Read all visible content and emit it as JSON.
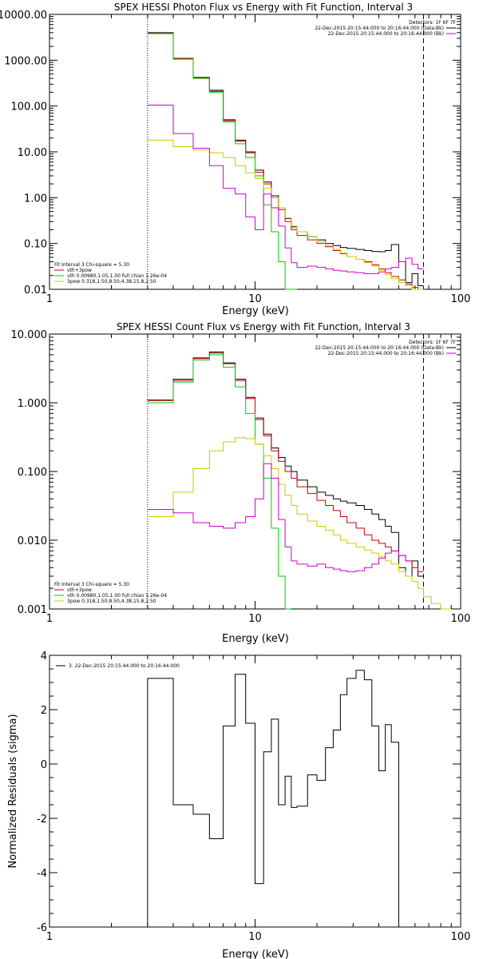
{
  "chart_data": [
    {
      "type": "line",
      "title": "SPEX HESSI Photon Flux vs Energy with Fit Function, Interval 3",
      "xlabel": "Energy (keV)",
      "ylabel": "",
      "xscale": "log",
      "yscale": "log",
      "xlim": [
        1,
        100
      ],
      "ylim": [
        0.01,
        10000
      ],
      "xticks": [
        {
          "v": 1,
          "label": "1"
        },
        {
          "v": 10,
          "label": "10"
        },
        {
          "v": 100,
          "label": "100"
        }
      ],
      "yticks": [
        {
          "v": 0.01,
          "label": "0.01"
        },
        {
          "v": 0.1,
          "label": "0.10"
        },
        {
          "v": 1,
          "label": "1.00"
        },
        {
          "v": 10,
          "label": "10.00"
        },
        {
          "v": 100,
          "label": "100.00"
        },
        {
          "v": 1000,
          "label": "1000.00"
        },
        {
          "v": 10000,
          "label": "10000.00"
        }
      ],
      "vlines": [
        {
          "x": 3.0,
          "style": "dotted"
        },
        {
          "x": 66.0,
          "style": "dashed"
        }
      ],
      "legend_top": [
        {
          "text": "Detectors: 1F 6F 7F",
          "color": ""
        },
        {
          "text": "22-Dec-2015 20:15:44.000 to 20:16:44.000 (Data-Bk)",
          "color": "#000000"
        },
        {
          "text": "22-Dec-2015 20:15:44.000 to 20:16:44.000 (Bk)",
          "color": "#cc00cc"
        }
      ],
      "legend_bottom": [
        {
          "text": "Fit Interval 3   Chi-square = 5.30",
          "color": ""
        },
        {
          "text": "vth+3pow",
          "color": "#cc0000"
        },
        {
          "text": "vth 0.00980,1.05,1.00  full chian 1.26e-04",
          "color": "#00cc00"
        },
        {
          "text": "3pow 0.318,1.50,8.50,4.38,15.8,2.50",
          "color": "#cccc00"
        }
      ],
      "bin_edges": [
        3,
        4,
        5,
        6,
        7,
        8,
        9,
        10,
        11,
        12,
        13,
        14,
        15,
        16,
        18,
        20,
        22,
        24,
        26,
        28,
        31,
        34,
        37,
        40,
        43,
        46,
        50,
        54,
        58,
        62,
        66
      ],
      "series": [
        {
          "name": "Data-Bk",
          "color": "#000000",
          "values": [
            4000,
            1100,
            420,
            220,
            50,
            18,
            10,
            4,
            2.2,
            1.1,
            0.6,
            0.35,
            0.23,
            0.18,
            0.14,
            0.12,
            0.1,
            0.09,
            0.082,
            0.078,
            0.074,
            0.07,
            0.067,
            0.066,
            0.07,
            0.095,
            0.04,
            0.014,
            0.022,
            0.012
          ]
        },
        {
          "name": "vth+3pow",
          "color": "#cc0000",
          "values": [
            3900,
            1080,
            410,
            210,
            48,
            17,
            9.5,
            3.6,
            2.0,
            1.0,
            0.55,
            0.3,
            0.2,
            0.15,
            0.12,
            0.1,
            0.085,
            0.07,
            0.06,
            0.052,
            0.045,
            0.04,
            0.034,
            0.028,
            0.023,
            0.019,
            0.016,
            0.013,
            0.011,
            0.009
          ]
        },
        {
          "name": "vth",
          "color": "#00cc00",
          "values": [
            3800,
            1050,
            400,
            200,
            45,
            15,
            7.5,
            3,
            0.7,
            0.18,
            0.04,
            0.01,
            0.006,
            null,
            null,
            null,
            null,
            null,
            null,
            null,
            null,
            null,
            null,
            null,
            null,
            null,
            null,
            null,
            null,
            null
          ]
        },
        {
          "name": "3pow",
          "color": "#cccc00",
          "values": [
            18,
            13,
            11,
            9.5,
            7.5,
            5,
            3.5,
            2.6,
            1.6,
            1.0,
            0.6,
            0.36,
            0.24,
            0.18,
            0.14,
            0.11,
            0.09,
            0.075,
            0.062,
            0.052,
            0.045,
            0.038,
            0.032,
            0.026,
            0.021,
            0.017,
            0.014,
            0.012,
            0.01,
            0.009
          ]
        },
        {
          "name": "Bk",
          "color": "#cc00cc",
          "values": [
            105,
            25,
            12,
            5,
            1.6,
            1.2,
            0.38,
            0.2,
            1.2,
            0.6,
            0.24,
            0.08,
            0.038,
            0.03,
            0.032,
            0.03,
            0.028,
            0.026,
            0.025,
            0.024,
            0.023,
            0.022,
            0.022,
            0.024,
            0.028,
            0.03,
            0.04,
            0.048,
            0.035,
            0.028
          ]
        }
      ]
    },
    {
      "type": "line",
      "title": "SPEX HESSI Count Flux vs Energy with Fit Function, Interval 3",
      "xlabel": "Energy (keV)",
      "ylabel": "",
      "xscale": "log",
      "yscale": "log",
      "xlim": [
        1,
        100
      ],
      "ylim": [
        0.001,
        10
      ],
      "xticks": [
        {
          "v": 1,
          "label": "1"
        },
        {
          "v": 10,
          "label": "10"
        },
        {
          "v": 100,
          "label": "100"
        }
      ],
      "yticks": [
        {
          "v": 0.001,
          "label": "0.001"
        },
        {
          "v": 0.01,
          "label": "0.010"
        },
        {
          "v": 0.1,
          "label": "0.100"
        },
        {
          "v": 1,
          "label": "1.000"
        },
        {
          "v": 10,
          "label": "10.000"
        }
      ],
      "vlines": [
        {
          "x": 3.0,
          "style": "dotted"
        },
        {
          "x": 66.0,
          "style": "dashed"
        }
      ],
      "legend_top": [
        {
          "text": "Detectors: 1F 6F 7F",
          "color": ""
        },
        {
          "text": "22-Dec-2015 20:15:44.000 to 20:16:44.000 (Data-Bk)",
          "color": "#000000"
        },
        {
          "text": "22-Dec-2015 20:15:44.000 to 20:16:44.000 (Bk)",
          "color": "#cc00cc"
        }
      ],
      "legend_bottom": [
        {
          "text": "Fit Interval 3   Chi-square = 5.30",
          "color": ""
        },
        {
          "text": "vth+3pow",
          "color": "#cc0000"
        },
        {
          "text": "vth 0.00980,1.05,1.00  full chian 1.26e-04",
          "color": "#00cc00"
        },
        {
          "text": "3pow 0.318,1.50,8.50,4.38,15.8,2.50",
          "color": "#cccc00"
        }
      ],
      "bin_edges": [
        3,
        4,
        5,
        6,
        7,
        8,
        9,
        10,
        11,
        12,
        13,
        14,
        15,
        16,
        18,
        20,
        22,
        24,
        26,
        28,
        31,
        34,
        37,
        40,
        43,
        46,
        50,
        54,
        58,
        62,
        66,
        72,
        80,
        90
      ],
      "series": [
        {
          "name": "Data-Bk",
          "color": "#000000",
          "values": [
            1.1,
            2.2,
            4.5,
            5.5,
            3.8,
            2.2,
            1.2,
            0.6,
            0.35,
            0.22,
            0.16,
            0.12,
            0.1,
            0.075,
            0.06,
            0.05,
            0.045,
            0.04,
            0.037,
            0.035,
            0.032,
            0.028,
            0.024,
            0.02,
            0.016,
            0.013,
            0.004,
            0.003,
            0.005,
            0.003,
            null,
            null,
            null
          ]
        },
        {
          "name": "vth+3pow",
          "color": "#cc0000",
          "values": [
            1.08,
            2.1,
            4.4,
            5.3,
            3.7,
            2.1,
            1.15,
            0.57,
            0.33,
            0.2,
            0.14,
            0.1,
            0.08,
            0.06,
            0.048,
            0.038,
            0.032,
            0.027,
            0.022,
            0.018,
            0.015,
            0.012,
            0.01,
            0.009,
            0.008,
            0.007,
            0.006,
            0.005,
            0.004,
            0.0035,
            null,
            null,
            null
          ]
        },
        {
          "name": "vth",
          "color": "#00cc00",
          "values": [
            1.0,
            2.0,
            4.2,
            5.0,
            3.3,
            1.7,
            0.7,
            0.25,
            0.08,
            0.015,
            0.003,
            0.001,
            null,
            null,
            null,
            null,
            null,
            null,
            null,
            null,
            null,
            null,
            null,
            null,
            null,
            null,
            null,
            null,
            null,
            null,
            null,
            null,
            null
          ]
        },
        {
          "name": "3pow",
          "color": "#cccc00",
          "values": [
            0.022,
            0.05,
            0.11,
            0.2,
            0.27,
            0.31,
            0.3,
            0.25,
            0.17,
            0.11,
            0.065,
            0.045,
            0.032,
            0.024,
            0.019,
            0.016,
            0.014,
            0.012,
            0.01,
            0.009,
            0.008,
            0.0072,
            0.0065,
            0.0058,
            0.005,
            0.0045,
            0.0035,
            0.003,
            0.0025,
            0.002,
            0.0015,
            0.0012,
            0.001
          ]
        },
        {
          "name": "Bk",
          "color": "#cc00cc",
          "values": [
            0.028,
            0.025,
            0.018,
            0.016,
            0.015,
            0.018,
            0.022,
            0.04,
            0.13,
            0.08,
            0.02,
            0.008,
            0.005,
            0.0045,
            0.0042,
            0.0045,
            0.004,
            0.0038,
            0.0036,
            0.0035,
            0.0036,
            0.004,
            0.0045,
            0.0055,
            0.0065,
            0.007,
            0.006,
            0.005,
            null,
            null,
            null,
            null,
            null
          ]
        }
      ]
    },
    {
      "type": "line",
      "title": "",
      "xlabel": "Energy (keV)",
      "ylabel": "Normalized Residuals (sigma)",
      "xscale": "log",
      "yscale": "linear",
      "xlim": [
        1,
        100
      ],
      "ylim": [
        -6,
        4
      ],
      "xticks": [
        {
          "v": 1,
          "label": "1"
        },
        {
          "v": 10,
          "label": "10"
        },
        {
          "v": 100,
          "label": "100"
        }
      ],
      "yticks": [
        {
          "v": -6,
          "label": "-6"
        },
        {
          "v": -4,
          "label": "-4"
        },
        {
          "v": -2,
          "label": "-2"
        },
        {
          "v": 0,
          "label": "0"
        },
        {
          "v": 2,
          "label": "2"
        },
        {
          "v": 4,
          "label": "4"
        }
      ],
      "legend_top": [
        {
          "text": "3. 22-Dec-2015 20:15:44.000 to 20:16:44.000",
          "color": "#000000"
        }
      ],
      "bin_edges": [
        3,
        4,
        5,
        6,
        7,
        8,
        9,
        10,
        11,
        12,
        13,
        14,
        15,
        16,
        18,
        20,
        22,
        24,
        26,
        28,
        31,
        34,
        37,
        40,
        43,
        46,
        50,
        54,
        58,
        62,
        66
      ],
      "series": [
        {
          "name": "",
          "color": "#000000",
          "values": [
            3.15,
            -1.5,
            -1.85,
            -2.75,
            1.4,
            3.3,
            1.5,
            -4.4,
            0.45,
            1.65,
            -1.5,
            -0.45,
            -1.6,
            -1.55,
            -0.4,
            -0.6,
            0.6,
            1.25,
            2.55,
            3.15,
            3.45,
            3.1,
            1.4,
            -0.25,
            1.45,
            0.8,
            null,
            null,
            null,
            null
          ]
        }
      ]
    }
  ]
}
